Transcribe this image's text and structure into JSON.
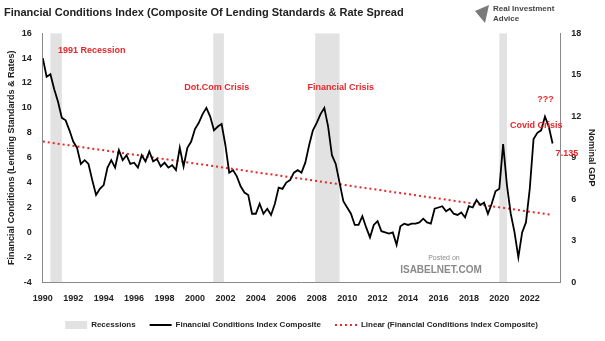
{
  "chart_data": {
    "type": "line",
    "title": "Financial Conditions Index (Composite Of Lending Standards & Rate Spread",
    "y_label": "Financial Conditions (Lending Standards & Rates)",
    "y2_label": "Nominal GDP",
    "logo": "Real Investment Advice",
    "source": [
      "Posted on",
      "ISABELNET.COM"
    ],
    "xlim": [
      1990,
      2024
    ],
    "xticks": [
      1990,
      1992,
      1994,
      1996,
      1998,
      2000,
      2002,
      2004,
      2006,
      2008,
      2010,
      2012,
      2014,
      2016,
      2018,
      2020,
      2022
    ],
    "ylim": [
      -4,
      16
    ],
    "yticks": [
      -4,
      -2,
      0,
      2,
      4,
      6,
      8,
      10,
      12,
      14,
      16
    ],
    "y2lim": [
      0,
      18
    ],
    "y2ticks": [
      0,
      3,
      6,
      9,
      12,
      15,
      18
    ],
    "grid": false,
    "legend": "bottom",
    "recessions": {
      "name": "Recessions",
      "color": "#e2e2e2",
      "periods": [
        [
          1990.5,
          1991.25
        ],
        [
          2001.2,
          2001.9
        ],
        [
          2007.9,
          2009.5
        ],
        [
          2020.0,
          2020.5
        ]
      ]
    },
    "series": [
      {
        "name": "Financial Conditions Index Composite",
        "color": "#000000",
        "line_style": "solid",
        "x": [
          1990.0,
          1990.25,
          1990.5,
          1990.75,
          1991.0,
          1991.25,
          1991.5,
          1991.75,
          1992.0,
          1992.25,
          1992.5,
          1992.75,
          1993.0,
          1993.25,
          1993.5,
          1993.75,
          1994.0,
          1994.25,
          1994.5,
          1994.75,
          1995.0,
          1995.25,
          1995.5,
          1995.75,
          1996.0,
          1996.25,
          1996.5,
          1996.75,
          1997.0,
          1997.25,
          1997.5,
          1997.75,
          1998.0,
          1998.25,
          1998.5,
          1998.75,
          1999.0,
          1999.25,
          1999.5,
          1999.75,
          2000.0,
          2000.25,
          2000.5,
          2000.75,
          2001.0,
          2001.25,
          2001.5,
          2001.75,
          2002.0,
          2002.25,
          2002.5,
          2002.75,
          2003.0,
          2003.25,
          2003.5,
          2003.75,
          2004.0,
          2004.25,
          2004.5,
          2004.75,
          2005.0,
          2005.25,
          2005.5,
          2005.75,
          2006.0,
          2006.25,
          2006.5,
          2006.75,
          2007.0,
          2007.25,
          2007.5,
          2007.75,
          2008.0,
          2008.25,
          2008.5,
          2008.75,
          2009.0,
          2009.25,
          2009.5,
          2009.75,
          2010.0,
          2010.25,
          2010.5,
          2010.75,
          2011.0,
          2011.25,
          2011.5,
          2011.75,
          2012.0,
          2012.25,
          2012.5,
          2012.75,
          2013.0,
          2013.25,
          2013.5,
          2013.75,
          2014.0,
          2014.25,
          2014.5,
          2014.75,
          2015.0,
          2015.25,
          2015.5,
          2015.75,
          2016.0,
          2016.25,
          2016.5,
          2016.75,
          2017.0,
          2017.25,
          2017.5,
          2017.75,
          2018.0,
          2018.25,
          2018.5,
          2018.75,
          2019.0,
          2019.25,
          2019.5,
          2019.75,
          2020.0,
          2020.25,
          2020.5,
          2020.75,
          2021.0,
          2021.25,
          2021.5,
          2021.75,
          2022.0,
          2022.25,
          2022.5,
          2022.75,
          2023.0,
          2023.25,
          2023.5
        ],
        "values": [
          14.0,
          12.5,
          12.7,
          11.5,
          10.5,
          9.2,
          9.0,
          8.2,
          7.3,
          6.8,
          5.5,
          5.8,
          5.5,
          4.2,
          3.0,
          3.5,
          3.8,
          5.2,
          5.8,
          5.2,
          6.6,
          5.8,
          6.2,
          5.5,
          5.6,
          5.2,
          6.2,
          5.7,
          6.5,
          5.7,
          5.9,
          5.3,
          5.6,
          5.2,
          5.4,
          5.0,
          6.8,
          5.3,
          6.8,
          7.3,
          8.3,
          8.8,
          9.5,
          10.0,
          9.3,
          8.2,
          8.5,
          8.7,
          7.0,
          4.8,
          5.0,
          4.5,
          3.7,
          3.2,
          3.0,
          1.5,
          1.5,
          2.3,
          1.5,
          1.9,
          1.4,
          2.3,
          3.6,
          3.5,
          4.0,
          4.2,
          4.8,
          5.0,
          4.8,
          5.6,
          7.0,
          8.2,
          8.8,
          9.5,
          10.0,
          8.5,
          6.2,
          5.5,
          4.0,
          2.5,
          2.0,
          1.5,
          0.6,
          0.6,
          1.3,
          0.4,
          -0.4,
          0.6,
          0.9,
          0.1,
          0.0,
          -0.1,
          0.0,
          -1.0,
          0.5,
          0.7,
          0.6,
          0.7,
          0.7,
          0.8,
          1.1,
          0.8,
          0.7,
          1.9,
          2.0,
          2.1,
          1.7,
          1.9,
          1.5,
          1.4,
          1.6,
          1.2,
          2.1,
          2.0,
          2.6,
          2.2,
          2.4,
          1.5,
          2.3,
          3.3,
          3.5,
          7.1,
          3.8,
          1.5,
          0.0,
          -2.0,
          0.0,
          0.8,
          3.5,
          7.5,
          8.0,
          8.2,
          9.3,
          8.5,
          7.135
        ]
      },
      {
        "name": "Linear (Financial Conditions Index Composite)",
        "color": "#e8262a",
        "line_style": "dotted",
        "x": [
          1990.0,
          2023.5
        ],
        "values": [
          7.3,
          1.4
        ]
      }
    ],
    "annotations": [
      {
        "text": "1991 Recession",
        "x": 1991.0,
        "y": 14.6
      },
      {
        "text": "Dot.Com Crisis",
        "x": 1999.3,
        "y": 11.6
      },
      {
        "text": "Financial Crisis",
        "x": 2007.4,
        "y": 11.6
      },
      {
        "text": "Covid Crisis",
        "x": 2020.7,
        "y": 8.6
      },
      {
        "text": "???",
        "x": 2022.5,
        "y": 10.7
      },
      {
        "text": "7.135",
        "x": 2023.7,
        "y": 6.3
      }
    ]
  }
}
